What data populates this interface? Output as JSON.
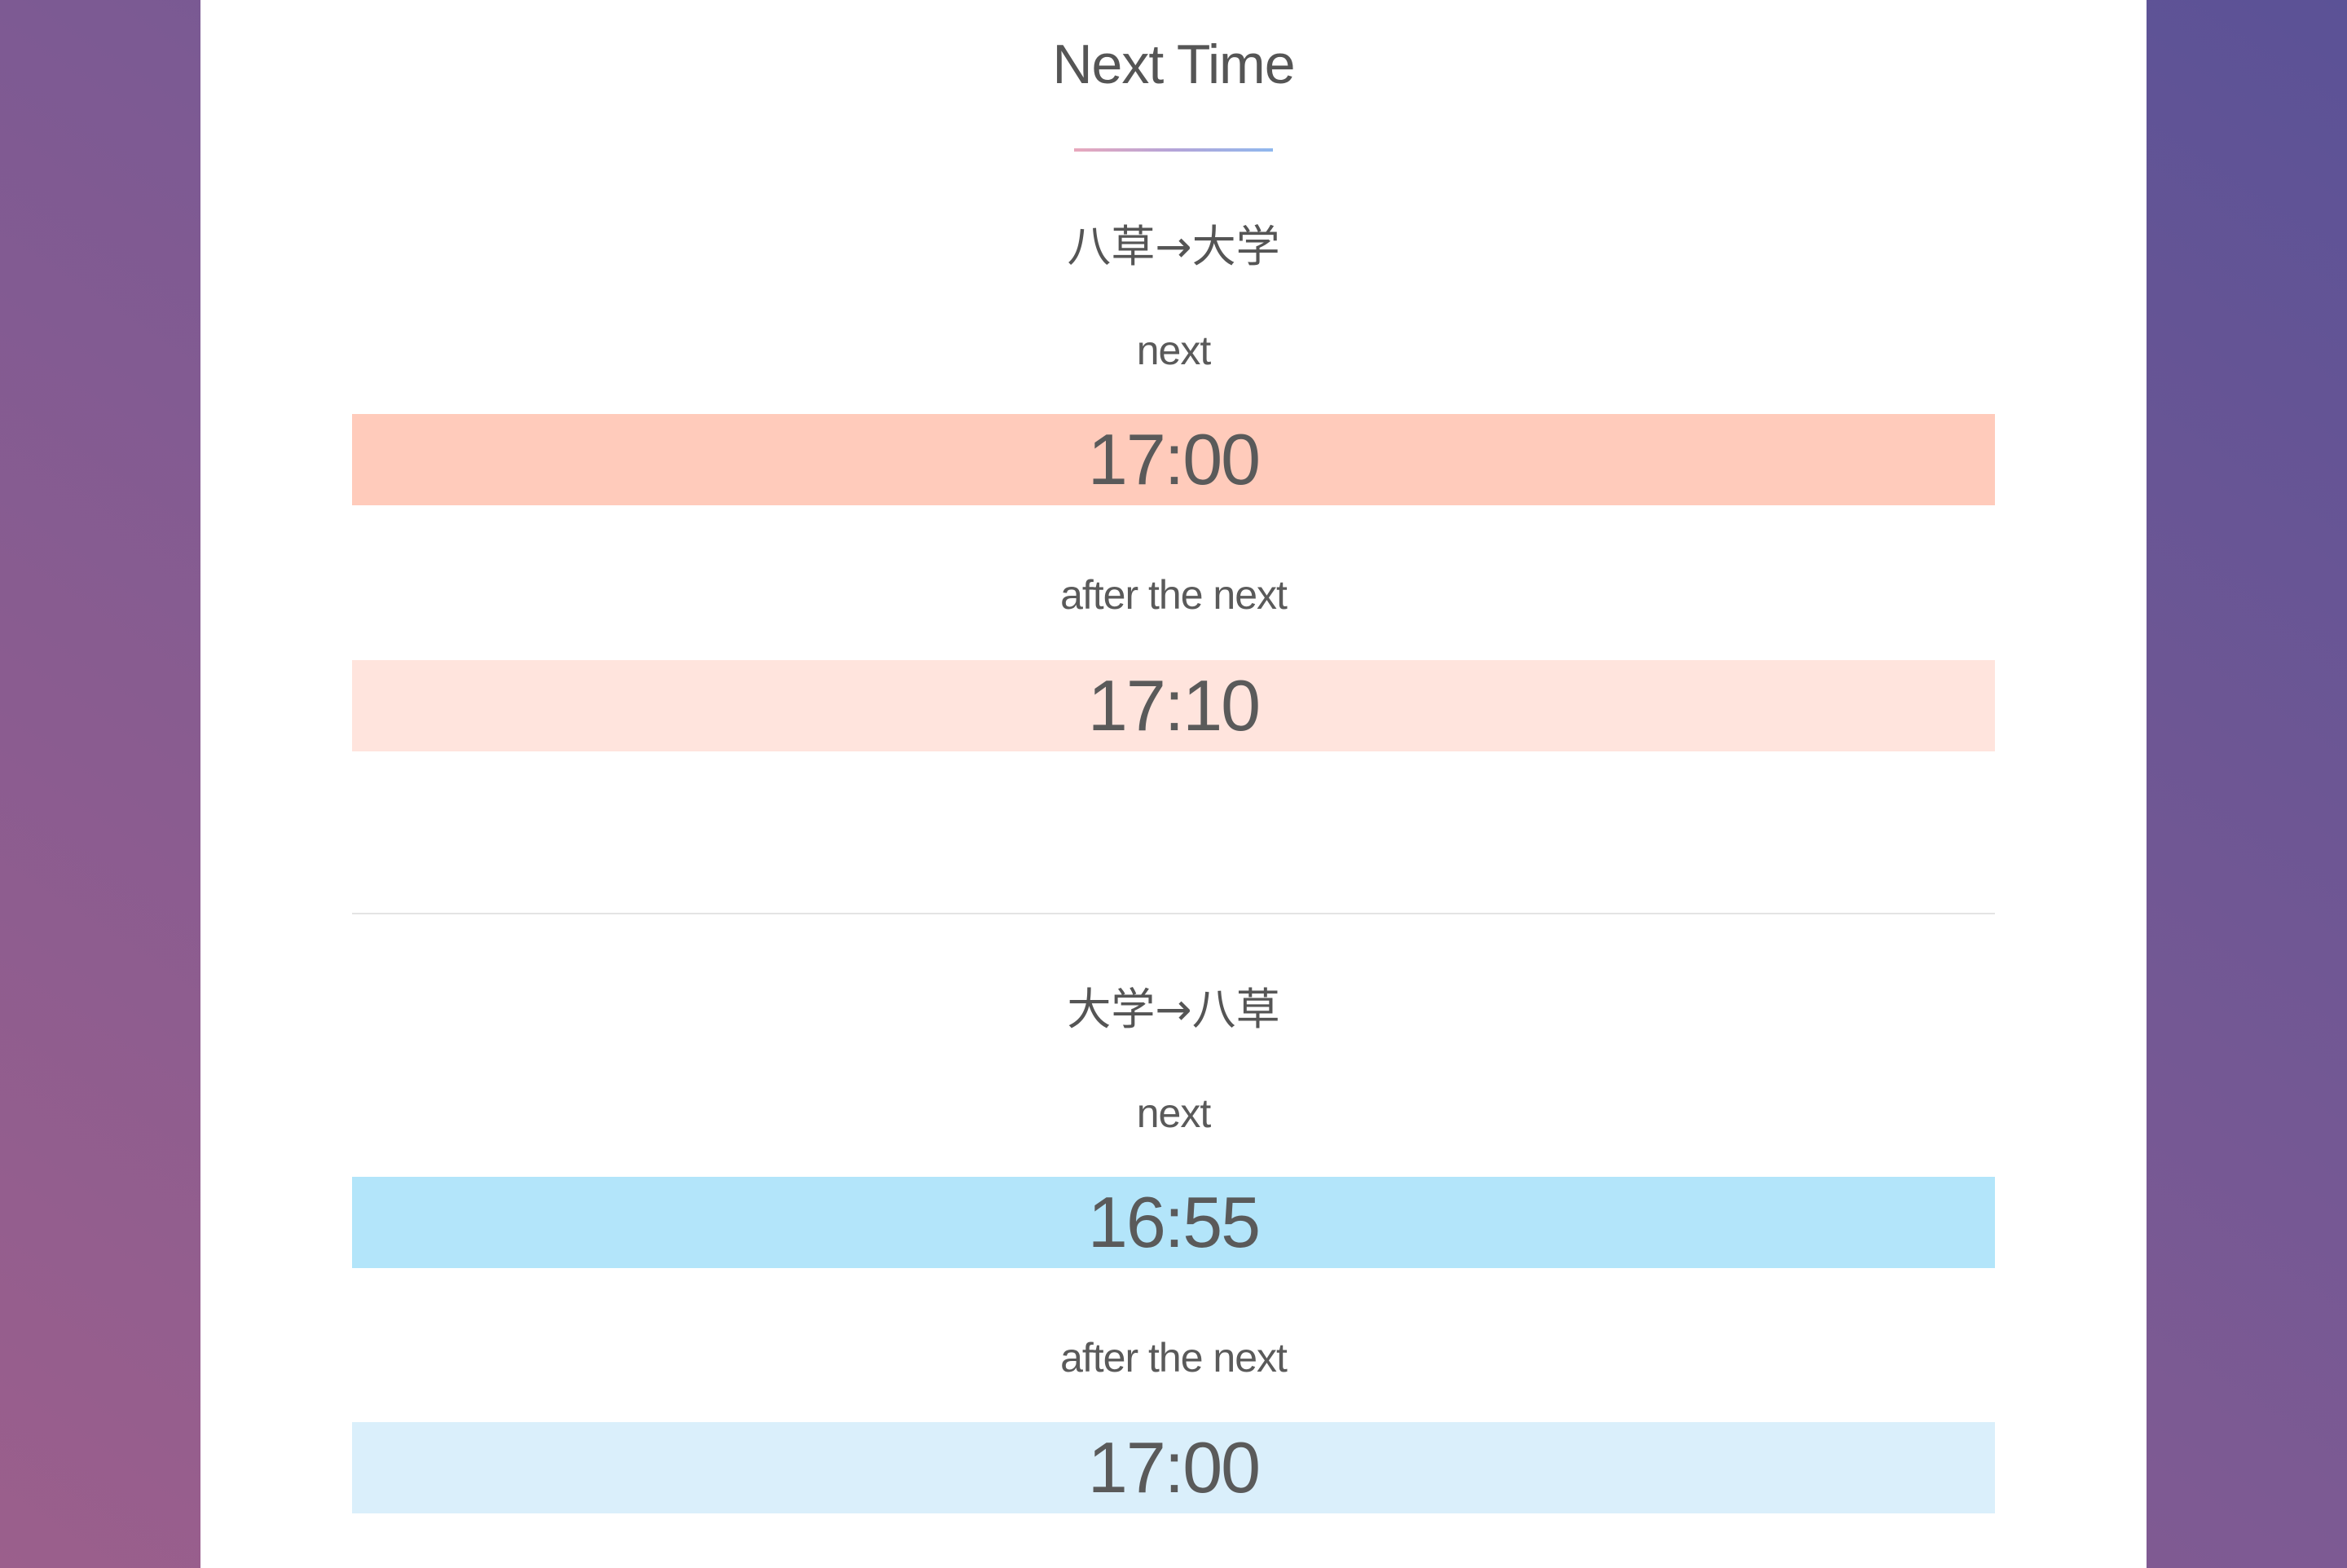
{
  "page": {
    "title": "Next Time"
  },
  "routes": [
    {
      "title": "八草→大学",
      "next_label": "next",
      "next_time": "17:00",
      "after_label": "after the next",
      "after_time": "17:10"
    },
    {
      "title": "大学→八草",
      "next_label": "next",
      "next_time": "16:55",
      "after_label": "after the next",
      "after_time": "17:00"
    }
  ],
  "colors": {
    "route_0_next_bg": "#ffcbbb",
    "route_0_after_bg": "#ffe4dd",
    "route_1_next_bg": "#b3e5fa",
    "route_1_after_bg": "#daeffb",
    "accent_gradient_start": "#e8a8bc",
    "accent_gradient_end": "#8fb8ee"
  }
}
